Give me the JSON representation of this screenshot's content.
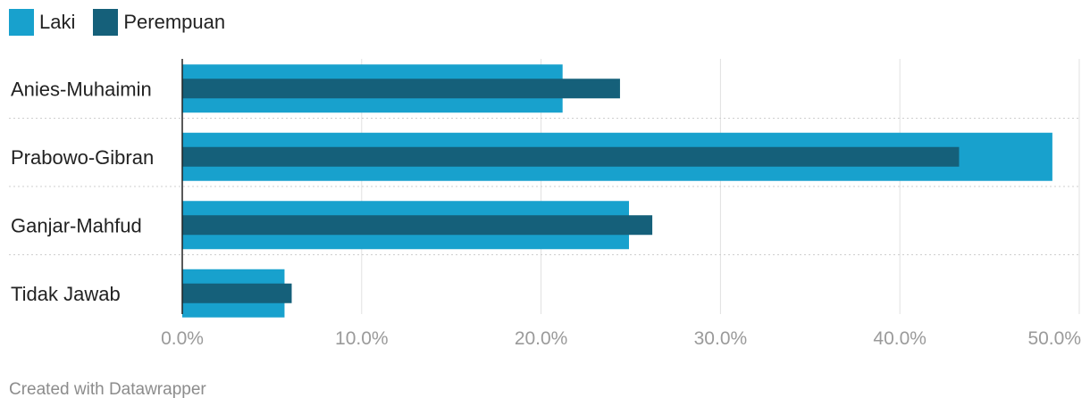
{
  "legend": {
    "items": [
      {
        "label": "Laki",
        "color": "#18a1cd"
      },
      {
        "label": "Perempuan",
        "color": "#15607a"
      }
    ]
  },
  "footer": {
    "credit": "Created with Datawrapper"
  },
  "chart_data": {
    "type": "bar",
    "orientation": "horizontal",
    "categories": [
      "Anies-Muhaimin",
      "Prabowo-Gibran",
      "Ganjar-Mahfud",
      "Tidak Jawab"
    ],
    "series": [
      {
        "name": "Laki",
        "values": [
          21.2,
          48.5,
          24.9,
          5.7
        ],
        "color": "#18a1cd"
      },
      {
        "name": "Perempuan",
        "values": [
          24.4,
          43.3,
          26.2,
          6.1
        ],
        "color": "#15607a"
      }
    ],
    "xlim": [
      0,
      50
    ],
    "xticks": [
      0,
      10,
      20,
      30,
      40,
      50
    ],
    "xtick_labels": [
      "0.0%",
      "10.0%",
      "20.0%",
      "30.0%",
      "40.0%",
      "50.0%"
    ],
    "grid": true,
    "legend_position": "top-left"
  }
}
